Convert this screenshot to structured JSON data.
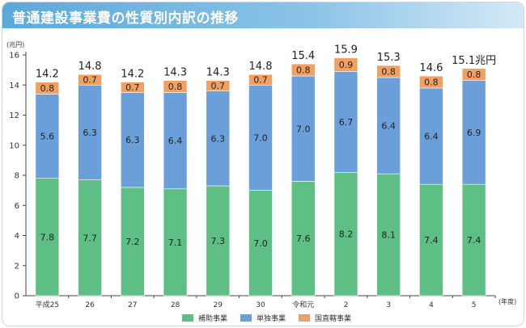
{
  "title": "普通建設事業費の性質別内訳の推移",
  "chart_data": {
    "type": "bar",
    "stacked": true,
    "categories": [
      "平成25",
      "26",
      "27",
      "28",
      "29",
      "30",
      "令和元",
      "2",
      "3",
      "4",
      "5"
    ],
    "series": [
      {
        "name": "補助事業",
        "color": "#5dbf84",
        "values": [
          7.8,
          7.7,
          7.2,
          7.1,
          7.3,
          7.0,
          7.6,
          8.2,
          8.1,
          7.4,
          7.4
        ],
        "labels": [
          "7.8",
          "7.7",
          "7.2",
          "7.1",
          "7.3",
          "7.0",
          "7.6",
          "8.2",
          "8.1",
          "7.4",
          "7.4"
        ]
      },
      {
        "name": "単独事業",
        "color": "#6a9fd9",
        "values": [
          5.6,
          6.3,
          6.3,
          6.4,
          6.3,
          7.0,
          7.0,
          6.7,
          6.4,
          6.4,
          6.9
        ],
        "labels": [
          "5.6",
          "6.3",
          "6.3",
          "6.4",
          "6.3",
          "7.0",
          "7.0",
          "6.7",
          "6.4",
          "6.4",
          "6.9"
        ]
      },
      {
        "name": "国直轄事業",
        "color": "#f2a061",
        "values": [
          0.8,
          0.7,
          0.7,
          0.8,
          0.7,
          0.7,
          0.8,
          0.9,
          0.8,
          0.8,
          0.8
        ],
        "labels": [
          "0.8",
          "0.7",
          "0.7",
          "0.8",
          "0.7",
          "0.7",
          "0.8",
          "0.9",
          "0.8",
          "0.8",
          "0.8"
        ]
      }
    ],
    "totals": [
      "14.2",
      "14.8",
      "14.2",
      "14.3",
      "14.3",
      "14.8",
      "15.4",
      "15.9",
      "15.3",
      "14.6",
      "15.1兆円"
    ],
    "ylabel": "(兆円)",
    "xlabel": "(年度)",
    "ylim": [
      0,
      16
    ],
    "yticks": [
      "0",
      "2",
      "4",
      "6",
      "8",
      "10",
      "12",
      "14",
      "16"
    ],
    "grid": false,
    "legend_position": "bottom"
  }
}
